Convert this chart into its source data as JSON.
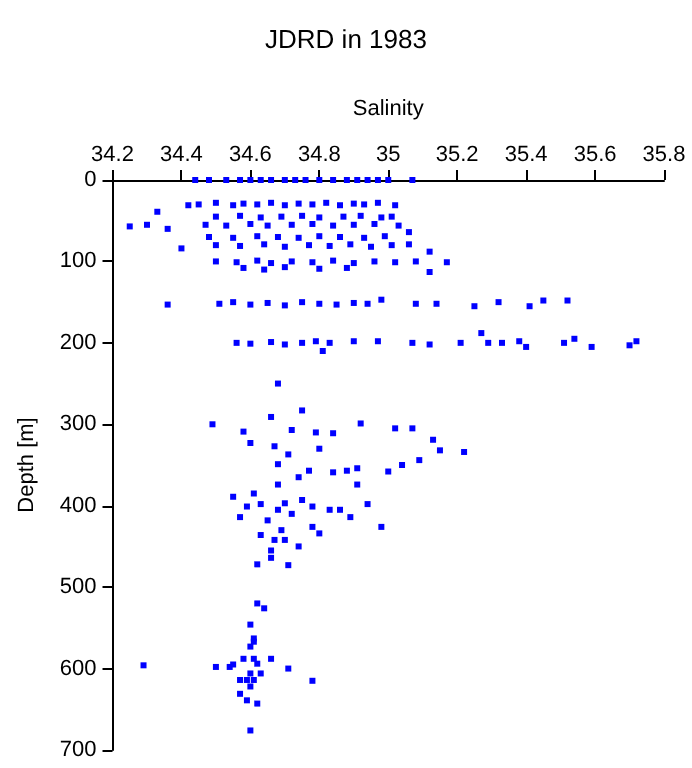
{
  "chart_data": {
    "type": "scatter",
    "title": "JDRD in 1983",
    "xlabel": "Salinity",
    "ylabel": "Depth [m]",
    "xlim": [
      34.2,
      35.8
    ],
    "xticks": [
      34.2,
      34.4,
      34.6,
      34.8,
      35,
      35.2,
      35.4,
      35.6,
      35.8
    ],
    "ylim": [
      700,
      0
    ],
    "yticks": [
      0,
      100,
      200,
      300,
      400,
      500,
      600,
      700
    ],
    "marker": "square",
    "grid": false,
    "series": [
      {
        "color": "#0000ff",
        "x": [
          34.44,
          34.48,
          34.53,
          34.57,
          34.6,
          34.63,
          34.66,
          34.7,
          34.73,
          34.76,
          34.8,
          34.84,
          34.88,
          34.91,
          34.94,
          34.97,
          35.0,
          35.07,
          34.25,
          34.3,
          34.33,
          34.36,
          34.4,
          34.42,
          34.36,
          34.45,
          34.5,
          34.55,
          34.58,
          34.62,
          34.66,
          34.7,
          34.74,
          34.78,
          34.82,
          34.86,
          34.9,
          34.93,
          34.97,
          35.02,
          34.5,
          34.57,
          34.63,
          34.69,
          34.75,
          34.8,
          34.87,
          34.92,
          34.98,
          35.01,
          34.47,
          34.53,
          34.6,
          34.65,
          34.72,
          34.78,
          34.84,
          34.9,
          34.96,
          35.03,
          35.06,
          34.48,
          34.55,
          34.62,
          34.68,
          34.74,
          34.8,
          34.86,
          34.93,
          34.99,
          35.06,
          34.5,
          34.57,
          34.64,
          34.7,
          34.77,
          34.83,
          34.89,
          34.95,
          35.01,
          35.12,
          34.5,
          34.56,
          34.62,
          34.66,
          34.72,
          34.78,
          34.84,
          34.9,
          34.96,
          35.02,
          35.08,
          35.17,
          34.58,
          34.64,
          34.7,
          34.8,
          34.88,
          35.12,
          34.51,
          34.55,
          34.6,
          34.65,
          34.7,
          34.75,
          34.8,
          34.85,
          34.9,
          34.94,
          34.98,
          35.08,
          35.14,
          35.25,
          35.32,
          35.41,
          35.45,
          35.52,
          34.56,
          34.6,
          34.66,
          34.7,
          34.75,
          34.79,
          34.81,
          34.83,
          34.9,
          34.97,
          35.07,
          35.12,
          35.21,
          35.27,
          35.29,
          35.33,
          35.38,
          35.4,
          35.51,
          35.54,
          35.59,
          35.7,
          35.72,
          34.68,
          34.75,
          34.49,
          34.66,
          34.58,
          34.6,
          34.67,
          34.72,
          34.79,
          34.84,
          34.92,
          35.02,
          35.07,
          35.13,
          35.22,
          35.15,
          35.09,
          35.04,
          35.0,
          34.91,
          34.88,
          34.84,
          34.77,
          34.74,
          34.71,
          34.68,
          34.8,
          34.68,
          34.91,
          34.94,
          34.98,
          34.55,
          34.57,
          34.59,
          34.61,
          34.63,
          34.68,
          34.7,
          34.72,
          34.75,
          34.78,
          34.83,
          34.86,
          34.89,
          34.65,
          34.69,
          34.63,
          34.67,
          34.7,
          34.74,
          34.66,
          34.66,
          34.78,
          34.8,
          34.62,
          34.71,
          34.62,
          34.64,
          34.6,
          34.61,
          34.29,
          34.5,
          34.54,
          34.55,
          34.58,
          34.61,
          34.6,
          34.61,
          34.59,
          34.66,
          34.71,
          34.78,
          34.57,
          34.6,
          34.63,
          34.62,
          34.6,
          34.57,
          34.59,
          34.62,
          34.6,
          34.61
        ],
        "values": [
          0,
          0,
          0,
          0,
          0,
          0,
          0,
          0,
          0,
          0,
          0,
          0,
          0,
          0,
          0,
          0,
          0,
          0,
          57,
          55,
          39,
          60,
          84,
          31,
          153,
          30,
          28,
          31,
          29,
          30,
          28,
          31,
          29,
          30,
          28,
          31,
          29,
          30,
          28,
          31,
          45,
          44,
          46,
          45,
          44,
          46,
          45,
          44,
          46,
          45,
          55,
          56,
          54,
          56,
          55,
          54,
          56,
          55,
          54,
          56,
          64,
          70,
          71,
          69,
          70,
          71,
          69,
          70,
          71,
          69,
          79,
          80,
          81,
          79,
          82,
          80,
          81,
          79,
          82,
          80,
          88,
          100,
          101,
          99,
          102,
          100,
          101,
          99,
          102,
          100,
          101,
          100,
          101,
          108,
          110,
          107,
          109,
          108,
          113,
          152,
          150,
          153,
          151,
          154,
          150,
          152,
          153,
          151,
          152,
          147,
          152,
          152,
          155,
          150,
          155,
          148,
          148,
          200,
          201,
          199,
          202,
          200,
          198,
          210,
          200,
          198,
          198,
          200,
          202,
          200,
          188,
          200,
          200,
          198,
          205,
          200,
          195,
          205,
          203,
          198,
          250,
          283,
          300,
          291,
          309,
          323,
          327,
          307,
          310,
          311,
          299,
          305,
          305,
          319,
          334,
          332,
          344,
          350,
          358,
          354,
          357,
          359,
          357,
          365,
          337,
          349,
          330,
          374,
          374,
          398,
          426,
          389,
          414,
          401,
          385,
          398,
          405,
          397,
          410,
          393,
          401,
          405,
          405,
          414,
          418,
          430,
          436,
          442,
          442,
          450,
          455,
          464,
          426,
          434,
          472,
          473,
          520,
          526,
          546,
          563,
          596,
          598,
          598,
          595,
          588,
          588,
          573,
          567,
          614,
          588,
          600,
          615,
          614,
          606,
          606,
          594,
          622,
          631,
          639,
          643,
          676,
          614
        ]
      }
    ]
  }
}
